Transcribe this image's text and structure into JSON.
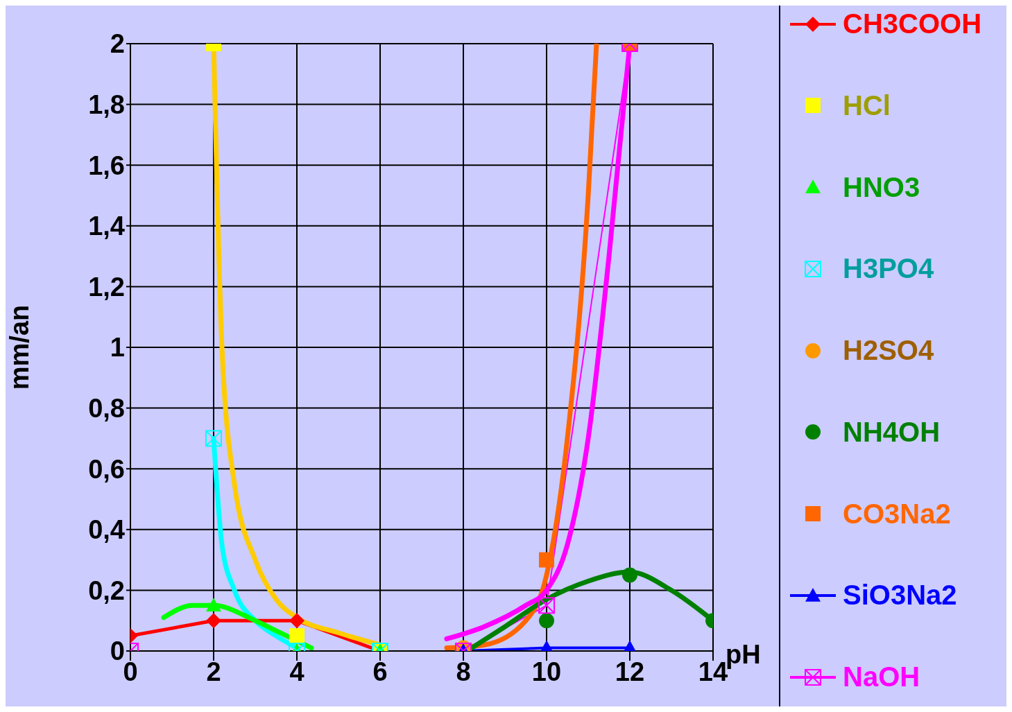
{
  "chart_data": {
    "type": "line",
    "xlabel": "pH",
    "ylabel": "mm/an",
    "xlim": [
      0,
      14
    ],
    "xticks": [
      0,
      2,
      4,
      6,
      8,
      10,
      12,
      14
    ],
    "ylim": [
      0,
      2
    ],
    "yticks": [
      0,
      {
        "value": 0.2,
        "label": "0,2"
      },
      {
        "value": 0.4,
        "label": "0,4"
      },
      {
        "value": 0.6,
        "label": "0,6"
      },
      {
        "value": 0.8,
        "label": "0,8"
      },
      1,
      {
        "value": 1.2,
        "label": "1,2"
      },
      {
        "value": 1.4,
        "label": "1,4"
      },
      {
        "value": 1.6,
        "label": "1,6"
      },
      {
        "value": 1.8,
        "label": "1,8"
      },
      2
    ],
    "grid": true,
    "legend": "right",
    "series": [
      {
        "name": "CH3COOH",
        "type": "line",
        "color": "#ff0000",
        "marker": "diamond",
        "x": [
          0,
          2,
          4,
          6
        ],
        "values": [
          0.05,
          0.1,
          0.1,
          0
        ]
      },
      {
        "name": "HCl",
        "type": "scatter",
        "color": "#ffff00",
        "marker": "square",
        "x": [
          2,
          4,
          6
        ],
        "values": [
          2,
          0.05,
          0
        ]
      },
      {
        "name": "HNO3",
        "type": "scatter",
        "color": "#00ff00",
        "marker": "triangle",
        "x": [
          2,
          4,
          6
        ],
        "values": [
          0.15,
          0,
          0
        ]
      },
      {
        "name": "H3PO4",
        "type": "scatter",
        "color": "#00ffff",
        "marker": "square",
        "x": [
          2,
          4,
          6
        ],
        "values": [
          0.7,
          0,
          0
        ]
      },
      {
        "name": "H2SO4",
        "type": "scatter",
        "color": "#ff9900",
        "marker": "circle",
        "x": [
          8
        ],
        "values": [
          0.01
        ]
      },
      {
        "name": "NH4OH",
        "type": "scatter",
        "color": "#008000",
        "marker": "circle",
        "x": [
          10,
          12,
          14
        ],
        "values": [
          0.1,
          0.25,
          0.1
        ]
      },
      {
        "name": "CO3Na2",
        "type": "scatter",
        "color": "#ff6600",
        "marker": "square",
        "x": [
          10,
          12
        ],
        "values": [
          0.3,
          2
        ]
      },
      {
        "name": "SiO3Na2",
        "type": "line",
        "color": "#0000ff",
        "marker": "triangle",
        "x": [
          8,
          10,
          12
        ],
        "values": [
          0,
          0.01,
          0.01
        ]
      },
      {
        "name": "NaOH",
        "type": "line",
        "color": "#ff00ff",
        "marker": "square",
        "x": [
          0,
          8,
          10,
          12
        ],
        "values": [
          0,
          0,
          0.15,
          2
        ]
      },
      {
        "type": "line",
        "color": "#ffcc00",
        "marker": "none",
        "x": [
          2,
          2.2,
          2.5,
          3,
          3.5,
          4,
          5,
          6
        ],
        "values": [
          2,
          1,
          0.55,
          0.3,
          0.17,
          0.11,
          0.06,
          0.02
        ]
      },
      {
        "type": "line",
        "color": "#00ffff",
        "marker": "none",
        "x": [
          2,
          2.2,
          2.5,
          3,
          3.5,
          4
        ],
        "values": [
          0.7,
          0.35,
          0.2,
          0.1,
          0.05,
          0.01
        ]
      },
      {
        "type": "line",
        "color": "#00ff00",
        "marker": "none",
        "x": [
          0.8,
          1.5,
          2,
          3,
          3.6,
          4.35
        ],
        "values": [
          0.11,
          0.15,
          0.15,
          0.1,
          0.06,
          0.01
        ]
      },
      {
        "type": "line",
        "color": "#ff6600",
        "marker": "none",
        "x": [
          7.6,
          8.5,
          9.5,
          10,
          10.5,
          11,
          11.2
        ],
        "values": [
          0.01,
          0.02,
          0.1,
          0.25,
          0.7,
          1.5,
          2
        ]
      },
      {
        "type": "line",
        "color": "#ff00ff",
        "marker": "none",
        "x": [
          7.6,
          8.5,
          9.5,
          10,
          10.5,
          11,
          11.5,
          12
        ],
        "values": [
          0.04,
          0.08,
          0.15,
          0.2,
          0.35,
          0.7,
          1.3,
          2
        ]
      },
      {
        "type": "line",
        "color": "#008000",
        "marker": "none",
        "x": [
          8.2,
          9,
          10,
          11,
          12,
          13,
          14
        ],
        "values": [
          0.01,
          0.08,
          0.17,
          0.23,
          0.26,
          0.2,
          0.1
        ]
      }
    ]
  }
}
